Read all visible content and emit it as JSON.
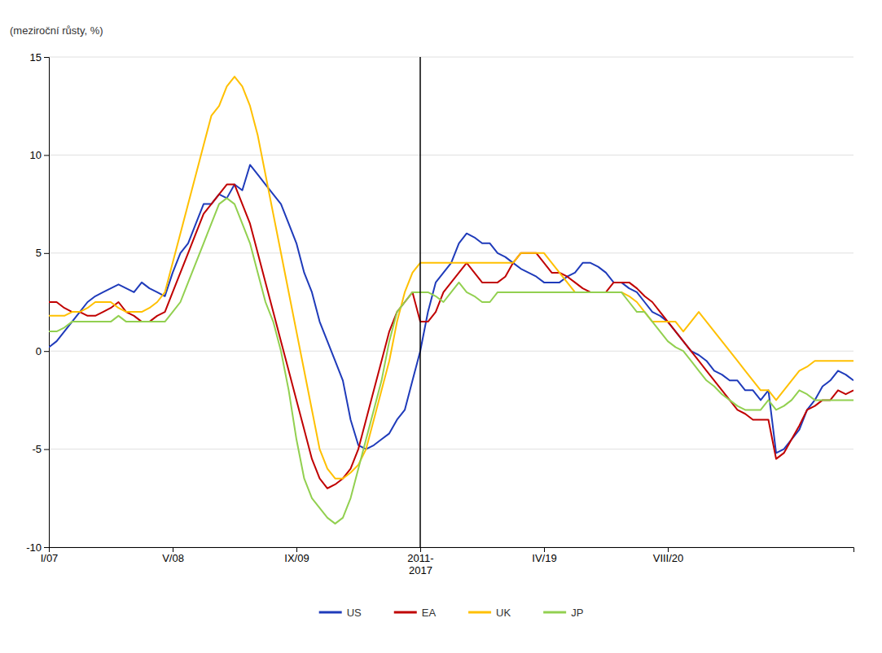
{
  "chart_data": {
    "type": "line",
    "ylabel": "(meziroční růsty, %)",
    "categories": [
      "I/07",
      null,
      null,
      null,
      null,
      null,
      null,
      null,
      null,
      null,
      null,
      null,
      null,
      null,
      null,
      null,
      "V/08",
      null,
      null,
      null,
      null,
      null,
      null,
      null,
      null,
      null,
      null,
      null,
      null,
      null,
      null,
      null,
      "IX/09",
      null,
      null,
      null,
      null,
      null,
      null,
      null,
      null,
      null,
      null,
      null,
      null,
      null,
      null,
      null,
      "2011-\n2017",
      null,
      null,
      null,
      null,
      null,
      null,
      null,
      null,
      null,
      null,
      null,
      null,
      null,
      null,
      null,
      "IV/19",
      null,
      null,
      null,
      null,
      null,
      null,
      null,
      null,
      null,
      null,
      null,
      null,
      null,
      null,
      null,
      "VIII/20",
      null,
      null,
      null,
      null,
      null,
      null,
      null,
      null,
      null,
      null,
      null,
      null,
      null,
      null,
      null,
      null,
      null,
      null,
      null,
      null,
      null,
      null,
      null,
      null
    ],
    "series": [
      {
        "name": "US",
        "color": "#1F3BBA",
        "values": [
          0.2,
          0.5,
          1.0,
          1.5,
          2.0,
          2.5,
          2.8,
          3.0,
          3.2,
          3.4,
          3.2,
          3.0,
          3.5,
          3.2,
          3.0,
          2.8,
          4.0,
          5.0,
          5.5,
          6.5,
          7.5,
          7.5,
          8.0,
          7.8,
          8.5,
          8.2,
          9.5,
          9.0,
          8.5,
          8.0,
          7.5,
          6.5,
          5.5,
          4.0,
          3.0,
          1.5,
          0.5,
          -0.5,
          -1.5,
          -3.5,
          -4.8,
          -5.0,
          -4.8,
          -4.5,
          -4.2,
          -3.5,
          -3.0,
          -1.5,
          0.0,
          2.0,
          3.5,
          4.0,
          4.5,
          5.5,
          6.0,
          5.8,
          5.5,
          5.5,
          5.0,
          4.8,
          4.5,
          4.2,
          4.0,
          3.8,
          3.5,
          3.5,
          3.5,
          3.8,
          4.0,
          4.5,
          4.5,
          4.3,
          4.0,
          3.5,
          3.5,
          3.2,
          3.0,
          2.5,
          2.0,
          1.8,
          1.5,
          1.0,
          0.5,
          0.0,
          -0.2,
          -0.5,
          -1.0,
          -1.2,
          -1.5,
          -1.5,
          -2.0,
          -2.0,
          -2.5,
          -2.0,
          -5.2,
          -5.0,
          -4.5,
          -4.0,
          -3.0,
          -2.5,
          -1.8,
          -1.5,
          -1.0,
          -1.2,
          -1.5
        ]
      },
      {
        "name": "EA",
        "color": "#C00000",
        "values": [
          2.5,
          2.5,
          2.2,
          2.0,
          2.0,
          1.8,
          1.8,
          2.0,
          2.2,
          2.5,
          2.0,
          1.8,
          1.5,
          1.5,
          1.8,
          2.0,
          3.0,
          4.0,
          5.0,
          6.0,
          7.0,
          7.5,
          8.0,
          8.5,
          8.5,
          7.5,
          6.5,
          5.0,
          3.5,
          2.0,
          0.5,
          -1.0,
          -2.5,
          -4.0,
          -5.5,
          -6.5,
          -7.0,
          -6.8,
          -6.5,
          -6.0,
          -5.0,
          -3.5,
          -2.0,
          -0.5,
          1.0,
          2.0,
          2.5,
          3.0,
          1.5,
          1.5,
          2.0,
          3.0,
          3.5,
          4.0,
          4.5,
          4.0,
          3.5,
          3.5,
          3.5,
          3.8,
          4.5,
          5.0,
          5.0,
          5.0,
          4.5,
          4.0,
          4.0,
          3.8,
          3.5,
          3.2,
          3.0,
          3.0,
          3.0,
          3.5,
          3.5,
          3.5,
          3.2,
          2.8,
          2.5,
          2.0,
          1.5,
          1.0,
          0.5,
          0.0,
          -0.5,
          -1.0,
          -1.5,
          -2.0,
          -2.5,
          -3.0,
          -3.2,
          -3.5,
          -3.5,
          -3.5,
          -5.5,
          -5.2,
          -4.5,
          -3.8,
          -3.0,
          -2.8,
          -2.5,
          -2.5,
          -2.0,
          -2.2,
          -2.0
        ]
      },
      {
        "name": "UK",
        "color": "#FFC000",
        "values": [
          1.8,
          1.8,
          1.8,
          2.0,
          2.0,
          2.2,
          2.5,
          2.5,
          2.5,
          2.2,
          2.0,
          2.0,
          2.0,
          2.2,
          2.5,
          3.0,
          4.5,
          6.0,
          7.5,
          9.0,
          10.5,
          12.0,
          12.5,
          13.5,
          14.0,
          13.5,
          12.5,
          11.0,
          9.0,
          7.0,
          5.0,
          3.0,
          1.0,
          -1.0,
          -3.0,
          -5.0,
          -6.0,
          -6.5,
          -6.5,
          -6.2,
          -5.8,
          -5.0,
          -3.5,
          -2.0,
          -0.5,
          1.5,
          3.0,
          4.0,
          4.5,
          4.5,
          4.5,
          4.5,
          4.5,
          4.5,
          4.5,
          4.5,
          4.5,
          4.5,
          4.5,
          4.5,
          4.5,
          5.0,
          5.0,
          5.0,
          5.0,
          4.5,
          4.0,
          3.5,
          3.0,
          3.0,
          3.0,
          3.0,
          3.0,
          3.0,
          3.0,
          2.8,
          2.5,
          2.0,
          1.5,
          1.5,
          1.5,
          1.5,
          1.0,
          1.5,
          2.0,
          1.5,
          1.0,
          0.5,
          0.0,
          -0.5,
          -1.0,
          -1.5,
          -2.0,
          -2.0,
          -2.5,
          -2.0,
          -1.5,
          -1.0,
          -0.8,
          -0.5,
          -0.5,
          -0.5,
          -0.5,
          -0.5,
          -0.5
        ]
      },
      {
        "name": "JP",
        "color": "#92D050",
        "values": [
          1.0,
          1.0,
          1.2,
          1.5,
          1.5,
          1.5,
          1.5,
          1.5,
          1.5,
          1.8,
          1.5,
          1.5,
          1.5,
          1.5,
          1.5,
          1.5,
          2.0,
          2.5,
          3.5,
          4.5,
          5.5,
          6.5,
          7.5,
          7.8,
          7.5,
          6.5,
          5.5,
          4.0,
          2.5,
          1.5,
          0.0,
          -2.0,
          -4.5,
          -6.5,
          -7.5,
          -8.0,
          -8.5,
          -8.8,
          -8.5,
          -7.5,
          -6.0,
          -4.5,
          -3.0,
          -1.5,
          0.5,
          2.0,
          2.5,
          3.0,
          3.0,
          3.0,
          2.8,
          2.5,
          3.0,
          3.5,
          3.0,
          2.8,
          2.5,
          2.5,
          3.0,
          3.0,
          3.0,
          3.0,
          3.0,
          3.0,
          3.0,
          3.0,
          3.0,
          3.0,
          3.0,
          3.0,
          3.0,
          3.0,
          3.0,
          3.0,
          3.0,
          2.5,
          2.0,
          2.0,
          1.5,
          1.0,
          0.5,
          0.2,
          0.0,
          -0.5,
          -1.0,
          -1.5,
          -1.8,
          -2.2,
          -2.5,
          -2.8,
          -3.0,
          -3.0,
          -3.0,
          -2.5,
          -3.0,
          -2.8,
          -2.5,
          -2.0,
          -2.2,
          -2.5,
          -2.5,
          -2.5,
          -2.5,
          -2.5,
          -2.5
        ]
      }
    ],
    "annotations": [
      {
        "type": "vline",
        "x": 48
      }
    ],
    "ylim": [
      -10,
      15
    ],
    "yticks": [
      -10,
      -5,
      0,
      5,
      10,
      15
    ],
    "grid": true,
    "legend": "bottom"
  }
}
